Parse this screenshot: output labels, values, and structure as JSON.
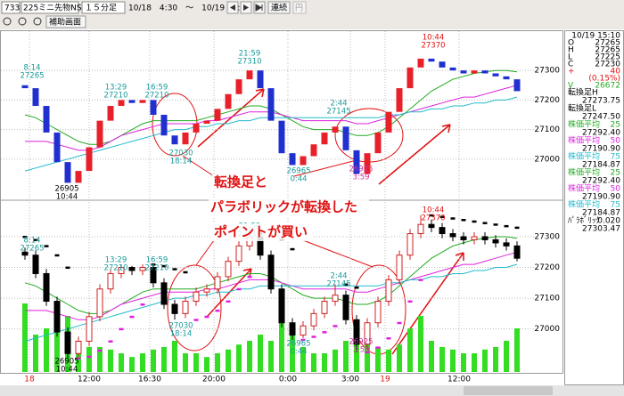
{
  "toolbar": {
    "code": "733",
    "name": "225ミニ先物NS",
    "period": "１５分足",
    "range": "10/18　4:30　～　10/19 15:10",
    "continuous": "連続",
    "yen": "円",
    "sub": "補助画面"
  },
  "chart_data": {
    "type": "candlestick",
    "x_labels": [
      "18",
      "12:00",
      "16:30",
      "20:00",
      "0:00",
      "3:00",
      "19",
      "12:00"
    ],
    "open": [
      27250,
      27240,
      27180,
      27090,
      26990,
      26920,
      26960,
      27040,
      27130,
      27180,
      27200,
      27190,
      27200,
      27150,
      27080,
      27050,
      27090,
      27120,
      27130,
      27170,
      27220,
      27270,
      27300,
      27240,
      27130,
      27020,
      26980,
      27010,
      27050,
      27090,
      27110,
      27030,
      26950,
      27020,
      27090,
      27160,
      27240,
      27310,
      27340,
      27330,
      27310,
      27300,
      27290,
      27300,
      27290,
      27280,
      27270
    ],
    "high": [
      27265,
      27255,
      27195,
      27105,
      27005,
      26975,
      27055,
      27145,
      27195,
      27210,
      27205,
      27210,
      27205,
      27165,
      27095,
      27105,
      27135,
      27145,
      27185,
      27235,
      27285,
      27310,
      27305,
      27255,
      27145,
      27035,
      27025,
      27065,
      27105,
      27145,
      27125,
      27045,
      27035,
      27105,
      27175,
      27255,
      27325,
      27370,
      27355,
      27345,
      27325,
      27315,
      27315,
      27315,
      27305,
      27295,
      27285
    ],
    "low": [
      27225,
      27165,
      27075,
      26975,
      26905,
      26910,
      26945,
      27025,
      27115,
      27165,
      27175,
      27175,
      27135,
      27065,
      27030,
      27035,
      27075,
      27105,
      27115,
      27155,
      27205,
      27255,
      27225,
      27115,
      27005,
      26965,
      26970,
      26995,
      27035,
      27075,
      27015,
      26925,
      26935,
      27005,
      27075,
      27145,
      27225,
      27295,
      27315,
      27295,
      27285,
      27275,
      27275,
      27275,
      27265,
      27255,
      27220
    ],
    "close": [
      27240,
      27180,
      27090,
      26990,
      26920,
      26960,
      27040,
      27130,
      27180,
      27200,
      27190,
      27200,
      27150,
      27080,
      27050,
      27090,
      27120,
      27130,
      27170,
      27220,
      27270,
      27300,
      27240,
      27130,
      27020,
      26980,
      27010,
      27050,
      27090,
      27110,
      27030,
      26950,
      27020,
      27090,
      27160,
      27240,
      27310,
      27340,
      27330,
      27310,
      27300,
      27290,
      27300,
      27290,
      27280,
      27270,
      27230
    ],
    "volume": [
      55,
      30,
      35,
      40,
      45,
      25,
      20,
      20,
      18,
      15,
      12,
      15,
      18,
      20,
      25,
      15,
      15,
      12,
      15,
      18,
      22,
      25,
      30,
      25,
      40,
      35,
      20,
      15,
      15,
      18,
      25,
      40,
      30,
      20,
      18,
      22,
      35,
      45,
      25,
      20,
      18,
      15,
      15,
      18,
      20,
      25,
      35
    ],
    "volume_lim": [
      0,
      100
    ],
    "moving_averages": [
      {
        "name": "株価平均",
        "period": "25",
        "value": "27292.40",
        "color": "#22aa22",
        "values": [
          27150,
          27140,
          27120,
          27100,
          27080,
          27060,
          27050,
          27050,
          27060,
          27080,
          27100,
          27120,
          27130,
          27130,
          27130,
          27130,
          27130,
          27140,
          27150,
          27160,
          27170,
          27180,
          27180,
          27170,
          27150,
          27130,
          27110,
          27100,
          27100,
          27100,
          27090,
          27080,
          27080,
          27090,
          27110,
          27140,
          27170,
          27200,
          27230,
          27250,
          27270,
          27280,
          27290,
          27295,
          27300,
          27300,
          27295
        ]
      },
      {
        "name": "株価平均",
        "period": "50",
        "value": "27190.90",
        "color": "#dd22dd",
        "values": [
          27060,
          27060,
          27060,
          27050,
          27040,
          27030,
          27030,
          27040,
          27060,
          27080,
          27090,
          27100,
          27110,
          27120,
          27120,
          27120,
          27120,
          27130,
          27130,
          27140,
          27150,
          27160,
          27160,
          27160,
          27150,
          27140,
          27130,
          27130,
          27130,
          27130,
          27130,
          27120,
          27120,
          27130,
          27140,
          27150,
          27160,
          27170,
          27180,
          27190,
          27200,
          27210,
          27210,
          27220,
          27230,
          27240,
          27250
        ]
      },
      {
        "name": "株価平均",
        "period": "75",
        "value": "27184.87",
        "color": "#22bbcc",
        "values": [
          26960,
          26970,
          26980,
          26990,
          27000,
          27010,
          27020,
          27030,
          27040,
          27050,
          27060,
          27070,
          27080,
          27090,
          27100,
          27100,
          27110,
          27110,
          27120,
          27120,
          27130,
          27130,
          27140,
          27140,
          27140,
          27140,
          27140,
          27140,
          27140,
          27140,
          27140,
          27140,
          27140,
          27140,
          27150,
          27150,
          27160,
          27160,
          27170,
          27170,
          27180,
          27180,
          27190,
          27190,
          27200,
          27200,
          27210
        ]
      }
    ],
    "parabolic": {
      "name": "ﾊﾟﾗﾎﾞﾘｯｸ",
      "step": "0.020",
      "value": "27303.47",
      "values": [
        27300,
        27290,
        27270,
        27240,
        27200,
        26905,
        26910,
        26930,
        26960,
        27000,
        27040,
        27080,
        27210,
        27205,
        27195,
        27185,
        27030,
        27040,
        27060,
        27090,
        27130,
        27170,
        27310,
        27305,
        27290,
        27260,
        26965,
        26975,
        26990,
        27010,
        27145,
        27135,
        26925,
        26940,
        26970,
        27020,
        27090,
        27160,
        27370,
        27365,
        27360,
        27355,
        27350,
        27345,
        27340,
        27335,
        27330
      ]
    },
    "tenkan": {
      "high_label": "転換足H",
      "high": "27273.75",
      "low_label": "転換足L",
      "low": "27247.50"
    },
    "panels": [
      {
        "ylim": [
          26870,
          27430
        ],
        "yticks": [
          27300,
          27200,
          27100,
          27000
        ]
      },
      {
        "ylim": [
          26860,
          27410
        ],
        "yticks": [
          27300,
          27200,
          27100,
          27000
        ]
      }
    ],
    "annotations": [
      {
        "lines": [
          "8:14",
          "27265"
        ],
        "color": "#1a9a9a"
      },
      {
        "lines": [
          "26905",
          "10:44"
        ],
        "color": "#000000"
      },
      {
        "lines": [
          "13:29",
          "27210"
        ],
        "color": "#1a9a9a"
      },
      {
        "lines": [
          "16:59",
          "27210"
        ],
        "color": "#1a9a9a"
      },
      {
        "lines": [
          "21:59",
          "27310"
        ],
        "color": "#1a9a9a"
      },
      {
        "lines": [
          "27030",
          "18:14"
        ],
        "color": "#1a9a9a"
      },
      {
        "lines": [
          "26965",
          "0:44"
        ],
        "color": "#1a9a9a"
      },
      {
        "lines": [
          "2:44",
          "27145"
        ],
        "color": "#1a9a9a"
      },
      {
        "lines": [
          "26925",
          "3:59"
        ],
        "color": "#cc3399"
      },
      {
        "lines": [
          "10:44",
          "27370"
        ],
        "color": "#e01010"
      }
    ],
    "callout": [
      "転換足と",
      "パラボリックが転換した",
      "ポイントが買い"
    ]
  },
  "side_panel": {
    "time": "10/19 15:10",
    "ohlc": [
      {
        "label": "O",
        "value": "27265"
      },
      {
        "label": "H",
        "value": "27265"
      },
      {
        "label": "L",
        "value": "27225"
      },
      {
        "label": "C",
        "value": "27230"
      }
    ],
    "change": {
      "label": "+",
      "value": "40"
    },
    "change_pct": "(0.15%)",
    "volume": {
      "label": "V",
      "value": "26672"
    }
  }
}
